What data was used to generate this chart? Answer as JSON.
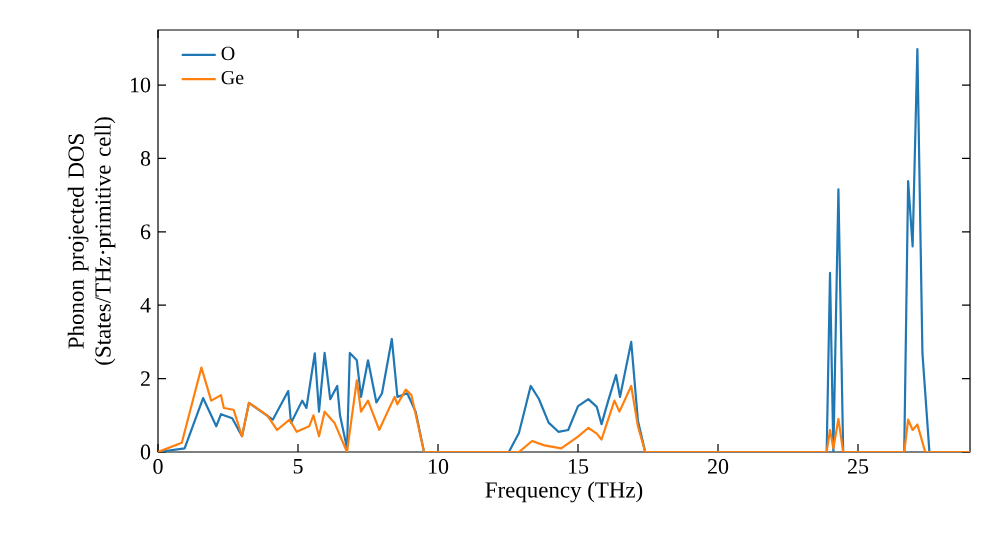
{
  "chart_data": {
    "type": "line",
    "xlabel": "Frequency (THz)",
    "ylabel": "Phonon projected DOS (States/THz·primitive cell)",
    "xlim": [
      0,
      29
    ],
    "ylim": [
      0,
      11.5
    ],
    "xticks": [
      0,
      5,
      10,
      15,
      20,
      25
    ],
    "yticks": [
      0,
      2,
      4,
      6,
      8,
      10
    ],
    "legend": "top left",
    "grid": false,
    "series": [
      {
        "name": "O",
        "color": "#1f77b4",
        "x": [
          0,
          0.95,
          1.61,
          2.08,
          2.25,
          2.65,
          3.0,
          3.25,
          4.1,
          4.65,
          4.75,
          5.15,
          5.3,
          5.6,
          5.75,
          5.95,
          6.15,
          6.4,
          6.5,
          6.75,
          6.85,
          7.1,
          7.25,
          7.5,
          7.8,
          8.0,
          8.35,
          8.55,
          8.9,
          9.2,
          9.5,
          12.53,
          12.89,
          13.31,
          13.6,
          13.95,
          14.3,
          14.65,
          15.0,
          15.37,
          15.67,
          15.84,
          16.08,
          16.36,
          16.5,
          16.9,
          17.14,
          17.4,
          23.88,
          24.0,
          24.12,
          24.3,
          24.47,
          26.65,
          26.79,
          26.95,
          27.12,
          27.3,
          27.55,
          29
        ],
        "values": [
          0,
          0.1,
          1.47,
          0.7,
          1.03,
          0.92,
          0.43,
          1.34,
          0.88,
          1.66,
          0.79,
          1.4,
          1.2,
          2.69,
          1.1,
          2.7,
          1.44,
          1.8,
          1.0,
          0.1,
          2.7,
          2.5,
          1.5,
          2.5,
          1.35,
          1.6,
          3.08,
          1.5,
          1.6,
          1.1,
          0,
          0,
          0.52,
          1.8,
          1.45,
          0.8,
          0.55,
          0.6,
          1.25,
          1.44,
          1.23,
          0.76,
          1.4,
          2.1,
          1.5,
          3.0,
          0.85,
          0,
          0,
          4.88,
          0,
          7.16,
          0,
          0,
          7.38,
          5.6,
          10.98,
          2.7,
          0,
          0
        ]
      },
      {
        "name": "Ge",
        "color": "#ff7f0e",
        "x": [
          0,
          0.85,
          1.55,
          1.9,
          2.25,
          2.35,
          2.7,
          3.0,
          3.25,
          3.9,
          4.25,
          4.7,
          4.95,
          5.4,
          5.55,
          5.75,
          5.95,
          6.2,
          6.3,
          6.75,
          7.1,
          7.25,
          7.5,
          7.9,
          8.2,
          8.45,
          8.55,
          8.85,
          9.05,
          9.5,
          12.89,
          13.36,
          13.8,
          14.4,
          15.0,
          15.37,
          15.67,
          15.84,
          16.3,
          16.48,
          16.9,
          17.14,
          17.4,
          23.88,
          24.0,
          24.12,
          24.3,
          24.47,
          26.65,
          26.79,
          26.95,
          27.12,
          27.4,
          29
        ],
        "values": [
          0,
          0.25,
          2.3,
          1.4,
          1.55,
          1.2,
          1.15,
          0.43,
          1.34,
          1.0,
          0.6,
          0.88,
          0.55,
          0.7,
          1.0,
          0.43,
          1.1,
          0.88,
          0.8,
          0,
          1.95,
          1.1,
          1.4,
          0.6,
          1.1,
          1.5,
          1.3,
          1.7,
          1.55,
          0,
          0,
          0.3,
          0.18,
          0.1,
          0.42,
          0.66,
          0.5,
          0.34,
          1.4,
          1.1,
          1.8,
          0.7,
          0,
          0,
          0.6,
          0.1,
          0.9,
          0,
          0,
          0.88,
          0.6,
          0.75,
          0,
          0
        ]
      }
    ]
  }
}
